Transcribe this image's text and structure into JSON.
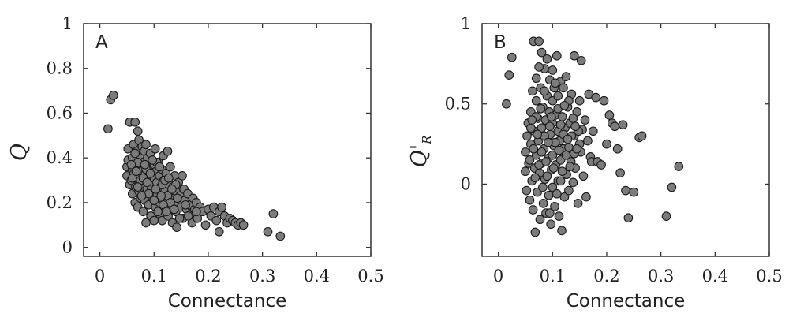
{
  "chart_data": [
    {
      "type": "scatter",
      "panel": "A",
      "xlabel": "Connectance",
      "ylabel": "Q",
      "xlim": [
        -0.03,
        0.5
      ],
      "ylim": [
        -0.04,
        1.0
      ],
      "xticks": [
        0,
        0.1,
        0.2,
        0.3,
        0.4,
        0.5
      ],
      "xticklabels": [
        "0",
        "0.1",
        "0.2",
        "0.3",
        "0.4",
        "0.5"
      ],
      "yticks": [
        0,
        0.2,
        0.4,
        0.6,
        0.8,
        1
      ],
      "yticklabels": [
        "0",
        "0.2",
        "0.4",
        "0.6",
        "0.8",
        "1"
      ],
      "grid": false,
      "marker_color": "#7b7b7b",
      "points": [
        [
          0.015,
          0.53
        ],
        [
          0.02,
          0.66
        ],
        [
          0.025,
          0.68
        ],
        [
          0.05,
          0.36
        ],
        [
          0.05,
          0.32
        ],
        [
          0.052,
          0.39
        ],
        [
          0.052,
          0.44
        ],
        [
          0.055,
          0.28
        ],
        [
          0.055,
          0.56
        ],
        [
          0.058,
          0.3
        ],
        [
          0.06,
          0.35
        ],
        [
          0.06,
          0.4
        ],
        [
          0.06,
          0.24
        ],
        [
          0.062,
          0.46
        ],
        [
          0.063,
          0.33
        ],
        [
          0.065,
          0.56
        ],
        [
          0.065,
          0.2
        ],
        [
          0.066,
          0.27
        ],
        [
          0.068,
          0.43
        ],
        [
          0.068,
          0.37
        ],
        [
          0.07,
          0.52
        ],
        [
          0.07,
          0.31
        ],
        [
          0.07,
          0.18
        ],
        [
          0.072,
          0.48
        ],
        [
          0.072,
          0.25
        ],
        [
          0.074,
          0.41
        ],
        [
          0.075,
          0.34
        ],
        [
          0.075,
          0.22
        ],
        [
          0.077,
          0.29
        ],
        [
          0.078,
          0.45
        ],
        [
          0.08,
          0.38
        ],
        [
          0.08,
          0.27
        ],
        [
          0.08,
          0.16
        ],
        [
          0.082,
          0.43
        ],
        [
          0.083,
          0.21
        ],
        [
          0.084,
          0.33
        ],
        [
          0.085,
          0.46
        ],
        [
          0.085,
          0.11
        ],
        [
          0.087,
          0.26
        ],
        [
          0.088,
          0.4
        ],
        [
          0.09,
          0.36
        ],
        [
          0.09,
          0.3
        ],
        [
          0.09,
          0.19
        ],
        [
          0.092,
          0.24
        ],
        [
          0.093,
          0.42
        ],
        [
          0.094,
          0.14
        ],
        [
          0.095,
          0.33
        ],
        [
          0.096,
          0.28
        ],
        [
          0.098,
          0.22
        ],
        [
          0.1,
          0.37
        ],
        [
          0.1,
          0.31
        ],
        [
          0.1,
          0.26
        ],
        [
          0.1,
          0.12
        ],
        [
          0.102,
          0.44
        ],
        [
          0.103,
          0.18
        ],
        [
          0.104,
          0.34
        ],
        [
          0.105,
          0.29
        ],
        [
          0.106,
          0.24
        ],
        [
          0.108,
          0.38
        ],
        [
          0.11,
          0.32
        ],
        [
          0.11,
          0.2
        ],
        [
          0.11,
          0.15
        ],
        [
          0.112,
          0.27
        ],
        [
          0.114,
          0.35
        ],
        [
          0.115,
          0.22
        ],
        [
          0.115,
          0.12
        ],
        [
          0.117,
          0.41
        ],
        [
          0.118,
          0.3
        ],
        [
          0.12,
          0.25
        ],
        [
          0.12,
          0.18
        ],
        [
          0.122,
          0.33
        ],
        [
          0.124,
          0.21
        ],
        [
          0.125,
          0.43
        ],
        [
          0.126,
          0.14
        ],
        [
          0.128,
          0.28
        ],
        [
          0.13,
          0.24
        ],
        [
          0.13,
          0.36
        ],
        [
          0.132,
          0.19
        ],
        [
          0.134,
          0.11
        ],
        [
          0.135,
          0.27
        ],
        [
          0.137,
          0.22
        ],
        [
          0.138,
          0.32
        ],
        [
          0.14,
          0.16
        ],
        [
          0.14,
          0.25
        ],
        [
          0.142,
          0.09
        ],
        [
          0.144,
          0.2
        ],
        [
          0.145,
          0.29
        ],
        [
          0.148,
          0.23
        ],
        [
          0.15,
          0.18
        ],
        [
          0.152,
          0.32
        ],
        [
          0.153,
          0.13
        ],
        [
          0.155,
          0.26
        ],
        [
          0.157,
          0.21
        ],
        [
          0.16,
          0.17
        ],
        [
          0.162,
          0.24
        ],
        [
          0.165,
          0.19
        ],
        [
          0.168,
          0.15
        ],
        [
          0.17,
          0.11
        ],
        [
          0.172,
          0.22
        ],
        [
          0.175,
          0.17
        ],
        [
          0.178,
          0.2
        ],
        [
          0.18,
          0.13
        ],
        [
          0.185,
          0.18
        ],
        [
          0.19,
          0.16
        ],
        [
          0.195,
          0.1
        ],
        [
          0.2,
          0.17
        ],
        [
          0.205,
          0.14
        ],
        [
          0.21,
          0.18
        ],
        [
          0.215,
          0.12
        ],
        [
          0.22,
          0.16
        ],
        [
          0.22,
          0.07
        ],
        [
          0.225,
          0.18
        ],
        [
          0.23,
          0.14
        ],
        [
          0.235,
          0.11
        ],
        [
          0.24,
          0.13
        ],
        [
          0.245,
          0.12
        ],
        [
          0.25,
          0.11
        ],
        [
          0.255,
          0.1
        ],
        [
          0.26,
          0.11
        ],
        [
          0.265,
          0.1
        ],
        [
          0.31,
          0.07
        ],
        [
          0.32,
          0.15
        ],
        [
          0.333,
          0.05
        ],
        [
          0.07,
          0.38
        ],
        [
          0.075,
          0.3
        ],
        [
          0.085,
          0.35
        ],
        [
          0.095,
          0.26
        ],
        [
          0.105,
          0.38
        ],
        [
          0.115,
          0.28
        ],
        [
          0.125,
          0.23
        ],
        [
          0.065,
          0.42
        ],
        [
          0.08,
          0.31
        ],
        [
          0.09,
          0.24
        ],
        [
          0.1,
          0.21
        ],
        [
          0.11,
          0.36
        ],
        [
          0.12,
          0.3
        ],
        [
          0.13,
          0.2
        ],
        [
          0.14,
          0.28
        ],
        [
          0.06,
          0.31
        ],
        [
          0.07,
          0.27
        ],
        [
          0.058,
          0.37
        ],
        [
          0.067,
          0.34
        ],
        [
          0.077,
          0.23
        ],
        [
          0.087,
          0.29
        ],
        [
          0.097,
          0.39
        ],
        [
          0.107,
          0.16
        ],
        [
          0.117,
          0.19
        ],
        [
          0.127,
          0.31
        ],
        [
          0.137,
          0.17
        ],
        [
          0.147,
          0.13
        ],
        [
          0.083,
          0.37
        ],
        [
          0.093,
          0.33
        ],
        [
          0.103,
          0.26
        ],
        [
          0.113,
          0.23
        ],
        [
          0.123,
          0.16
        ],
        [
          0.133,
          0.26
        ],
        [
          0.143,
          0.22
        ],
        [
          0.158,
          0.19
        ],
        [
          0.163,
          0.14
        ],
        [
          0.178,
          0.16
        ]
      ]
    },
    {
      "type": "scatter",
      "panel": "B",
      "xlabel": "Connectance",
      "ylabel": "Q'",
      "ylabel_subscript": "R",
      "xlim": [
        -0.03,
        0.5
      ],
      "ylim": [
        -0.45,
        1.0
      ],
      "xticks": [
        0,
        0.1,
        0.2,
        0.3,
        0.4,
        0.5
      ],
      "xticklabels": [
        "0",
        "0.1",
        "0.2",
        "0.3",
        "0.4",
        "0.5"
      ],
      "yticks": [
        0,
        0.5,
        1
      ],
      "yticklabels": [
        "0",
        "0.5",
        "1"
      ],
      "grid": false,
      "marker_color": "#7b7b7b",
      "points": [
        [
          0.015,
          0.5
        ],
        [
          0.02,
          0.68
        ],
        [
          0.025,
          0.79
        ],
        [
          0.05,
          0.08
        ],
        [
          0.05,
          0.2
        ],
        [
          0.052,
          -0.04
        ],
        [
          0.053,
          0.3
        ],
        [
          0.055,
          0.38
        ],
        [
          0.056,
          0.13
        ],
        [
          0.058,
          -0.1
        ],
        [
          0.06,
          0.25
        ],
        [
          0.06,
          0.45
        ],
        [
          0.062,
          0.02
        ],
        [
          0.063,
          0.58
        ],
        [
          0.064,
          -0.16
        ],
        [
          0.065,
          0.89
        ],
        [
          0.066,
          0.33
        ],
        [
          0.067,
          0.1
        ],
        [
          0.068,
          -0.3
        ],
        [
          0.07,
          0.52
        ],
        [
          0.07,
          0.18
        ],
        [
          0.07,
          0.66
        ],
        [
          0.072,
          -0.05
        ],
        [
          0.073,
          0.41
        ],
        [
          0.074,
          0.27
        ],
        [
          0.075,
          0.89
        ],
        [
          0.076,
          0.07
        ],
        [
          0.077,
          -0.22
        ],
        [
          0.078,
          0.6
        ],
        [
          0.08,
          0.35
        ],
        [
          0.08,
          0.13
        ],
        [
          0.08,
          0.82
        ],
        [
          0.082,
          0.48
        ],
        [
          0.083,
          -0.12
        ],
        [
          0.084,
          0.22
        ],
        [
          0.085,
          0.72
        ],
        [
          0.086,
          0.03
        ],
        [
          0.087,
          0.4
        ],
        [
          0.088,
          -0.18
        ],
        [
          0.09,
          0.29
        ],
        [
          0.09,
          0.55
        ],
        [
          0.09,
          0.78
        ],
        [
          0.092,
          0.16
        ],
        [
          0.093,
          -0.07
        ],
        [
          0.094,
          0.45
        ],
        [
          0.095,
          0.65
        ],
        [
          0.096,
          0.31
        ],
        [
          0.097,
          -0.25
        ],
        [
          0.098,
          0.09
        ],
        [
          0.1,
          0.52
        ],
        [
          0.1,
          0.38
        ],
        [
          0.1,
          0.71
        ],
        [
          0.1,
          -0.02
        ],
        [
          0.102,
          0.24
        ],
        [
          0.103,
          0.6
        ],
        [
          0.104,
          -0.14
        ],
        [
          0.105,
          0.43
        ],
        [
          0.106,
          0.12
        ],
        [
          0.108,
          0.8
        ],
        [
          0.11,
          0.33
        ],
        [
          0.11,
          0.02
        ],
        [
          0.11,
          0.55
        ],
        [
          0.112,
          -0.2
        ],
        [
          0.113,
          0.27
        ],
        [
          0.115,
          0.64
        ],
        [
          0.115,
          0.15
        ],
        [
          0.117,
          -0.29
        ],
        [
          0.118,
          0.42
        ],
        [
          0.12,
          0.22
        ],
        [
          0.12,
          0.6
        ],
        [
          0.122,
          -0.08
        ],
        [
          0.123,
          0.35
        ],
        [
          0.125,
          0.67
        ],
        [
          0.126,
          0.06
        ],
        [
          0.128,
          0.48
        ],
        [
          0.13,
          0.23
        ],
        [
          0.13,
          -0.04
        ],
        [
          0.132,
          0.38
        ],
        [
          0.134,
          0.14
        ],
        [
          0.135,
          0.56
        ],
        [
          0.138,
          0.01
        ],
        [
          0.14,
          0.3
        ],
        [
          0.14,
          0.8
        ],
        [
          0.142,
          0.1
        ],
        [
          0.145,
          0.45
        ],
        [
          0.147,
          -0.12
        ],
        [
          0.15,
          0.52
        ],
        [
          0.152,
          0.2
        ],
        [
          0.153,
          0.77
        ],
        [
          0.155,
          0.34
        ],
        [
          0.157,
          0.05
        ],
        [
          0.16,
          0.4
        ],
        [
          0.162,
          -0.08
        ],
        [
          0.165,
          0.27
        ],
        [
          0.167,
          0.56
        ],
        [
          0.17,
          0.17
        ],
        [
          0.172,
          0.14
        ],
        [
          0.175,
          0.33
        ],
        [
          0.18,
          0.54
        ],
        [
          0.183,
          0.14
        ],
        [
          0.19,
          0.12
        ],
        [
          0.195,
          0.52
        ],
        [
          0.2,
          0.25
        ],
        [
          0.205,
          0.43
        ],
        [
          0.21,
          0.38
        ],
        [
          0.215,
          0.36
        ],
        [
          0.22,
          0.22
        ],
        [
          0.225,
          0.07
        ],
        [
          0.23,
          0.37
        ],
        [
          0.235,
          -0.04
        ],
        [
          0.24,
          -0.21
        ],
        [
          0.25,
          -0.05
        ],
        [
          0.26,
          0.29
        ],
        [
          0.265,
          0.3
        ],
        [
          0.31,
          -0.2
        ],
        [
          0.32,
          -0.02
        ],
        [
          0.333,
          0.11
        ],
        [
          0.06,
          0.35
        ],
        [
          0.07,
          0.42
        ],
        [
          0.08,
          0.2
        ],
        [
          0.09,
          0.05
        ],
        [
          0.1,
          0.18
        ],
        [
          0.11,
          0.47
        ],
        [
          0.12,
          0.31
        ],
        [
          0.13,
          0.52
        ],
        [
          0.14,
          0.19
        ],
        [
          0.15,
          0.25
        ],
        [
          0.065,
          0.22
        ],
        [
          0.075,
          0.12
        ],
        [
          0.085,
          0.3
        ],
        [
          0.095,
          0.36
        ],
        [
          0.105,
          0.26
        ],
        [
          0.115,
          0.37
        ],
        [
          0.125,
          0.18
        ],
        [
          0.135,
          0.3
        ],
        [
          0.145,
          0.22
        ],
        [
          0.058,
          0.15
        ],
        [
          0.068,
          0.04
        ],
        [
          0.078,
          0.47
        ],
        [
          0.088,
          0.14
        ],
        [
          0.098,
          0.42
        ],
        [
          0.108,
          -0.06
        ],
        [
          0.118,
          0.08
        ],
        [
          0.128,
          0.28
        ],
        [
          0.138,
          0.41
        ],
        [
          0.148,
          0.33
        ],
        [
          0.062,
          0.4
        ],
        [
          0.072,
          0.31
        ],
        [
          0.082,
          -0.02
        ],
        [
          0.092,
          0.26
        ],
        [
          0.102,
          0.1
        ],
        [
          0.112,
          0.21
        ],
        [
          0.122,
          0.49
        ],
        [
          0.132,
          0.11
        ],
        [
          0.142,
          0.36
        ],
        [
          0.085,
          0.58
        ],
        [
          0.095,
          -0.18
        ],
        [
          0.105,
          0.63
        ],
        [
          0.075,
          0.73
        ],
        [
          0.115,
          0.02
        ]
      ]
    }
  ]
}
